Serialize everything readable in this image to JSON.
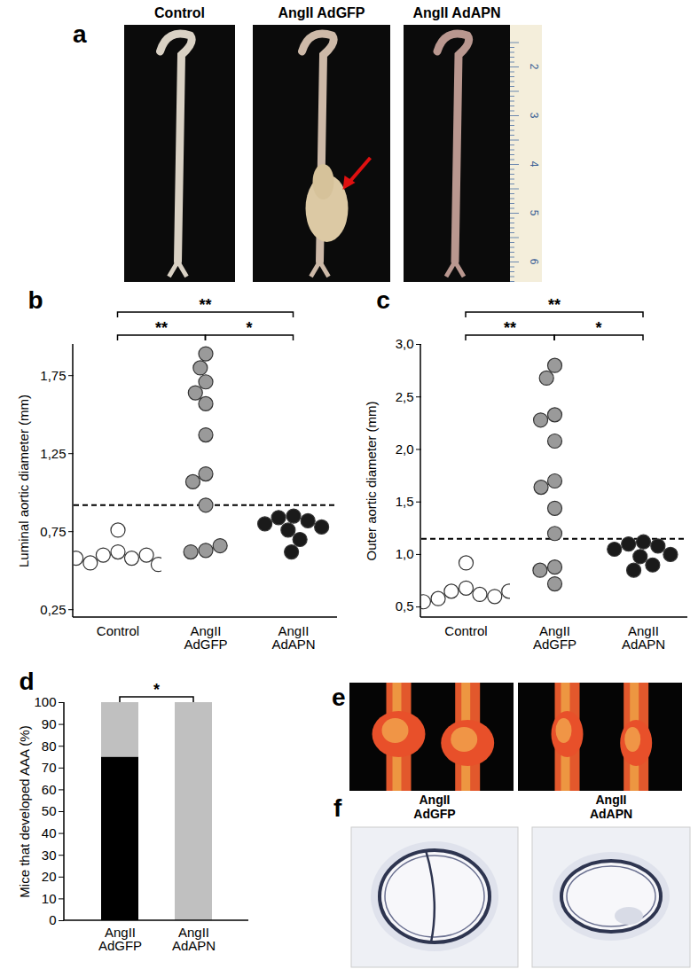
{
  "chart_data": [
    {
      "type": "scatter",
      "panel": "b",
      "y_label": "Luminal aortic diameter (mm)",
      "categories": [
        "Control",
        "AngII AdGFP",
        "AngII AdAPN"
      ],
      "colors": [
        "#ffffff",
        "#9a9a9a",
        "#1a1a1a"
      ],
      "values": [
        [
          0.76,
          0.62,
          0.6,
          0.58,
          0.6,
          0.55,
          0.54,
          0.58
        ],
        [
          1.89,
          1.8,
          1.71,
          1.64,
          1.57,
          1.37,
          1.12,
          1.07,
          0.92,
          0.63,
          0.62,
          0.66
        ],
        [
          0.85,
          0.84,
          0.82,
          0.8,
          0.78,
          0.76,
          0.7,
          0.62
        ]
      ],
      "threshold": 0.92,
      "ylim": [
        0.2,
        1.95
      ],
      "yticks": [
        {
          "value": 0.25,
          "label": "0,25"
        },
        {
          "value": 0.75,
          "label": "0,75"
        },
        {
          "value": 1.25,
          "label": "1,25"
        },
        {
          "value": 1.75,
          "label": "1,75"
        }
      ],
      "significance": [
        {
          "from": 0,
          "to": 2,
          "label": "**"
        },
        {
          "from": 0,
          "to": 1,
          "label": "**"
        },
        {
          "from": 1,
          "to": 2,
          "label": "*"
        }
      ]
    },
    {
      "type": "scatter",
      "panel": "c",
      "y_label": "Outer aortic diameter (mm)",
      "categories": [
        "Control",
        "AngII AdGFP",
        "AngII AdAPN"
      ],
      "colors": [
        "#ffffff",
        "#9a9a9a",
        "#1a1a1a"
      ],
      "values": [
        [
          0.92,
          0.68,
          0.65,
          0.62,
          0.6,
          0.58,
          0.55,
          0.65
        ],
        [
          2.8,
          2.68,
          2.33,
          2.28,
          2.08,
          1.7,
          1.64,
          1.44,
          1.2,
          0.88,
          0.85,
          0.72
        ],
        [
          1.12,
          1.1,
          1.08,
          1.05,
          1.0,
          0.98,
          0.9,
          0.85
        ]
      ],
      "threshold": 1.15,
      "ylim": [
        0.4,
        3.0
      ],
      "yticks": [
        {
          "value": 0.5,
          "label": "0,5"
        },
        {
          "value": 1.0,
          "label": "1,0"
        },
        {
          "value": 1.5,
          "label": "1,5"
        },
        {
          "value": 2.0,
          "label": "2,0"
        },
        {
          "value": 2.5,
          "label": "2,5"
        },
        {
          "value": 3.0,
          "label": "3,0"
        }
      ],
      "significance": [
        {
          "from": 0,
          "to": 2,
          "label": "**"
        },
        {
          "from": 0,
          "to": 1,
          "label": "**"
        },
        {
          "from": 1,
          "to": 2,
          "label": "*"
        }
      ]
    },
    {
      "type": "bar",
      "panel": "d",
      "stacked": true,
      "y_label": "Mice that developed AAA (%)",
      "categories": [
        "AngII AdGFP",
        "AngII AdAPN"
      ],
      "series": [
        {
          "color": "#000000",
          "values": [
            75,
            0
          ]
        },
        {
          "color": "#c0c0c0",
          "values": [
            25,
            100
          ]
        }
      ],
      "ylim": [
        0,
        100
      ],
      "yticks": [
        0,
        10,
        20,
        30,
        40,
        50,
        60,
        70,
        80,
        90,
        100
      ],
      "significance": [
        {
          "from": 0,
          "to": 1,
          "label": "*"
        }
      ]
    }
  ],
  "photo_panels": {
    "a": {
      "label": "a",
      "columns": [
        "Control",
        "AngII AdGFP",
        "AngII AdAPN"
      ],
      "ruler_labels": [
        "2",
        "3",
        "4",
        "5",
        "6"
      ]
    },
    "e": {
      "label": "e"
    },
    "f": {
      "label": "f",
      "columns": [
        "AngII AdGFP",
        "AngII AdAPN"
      ]
    }
  }
}
